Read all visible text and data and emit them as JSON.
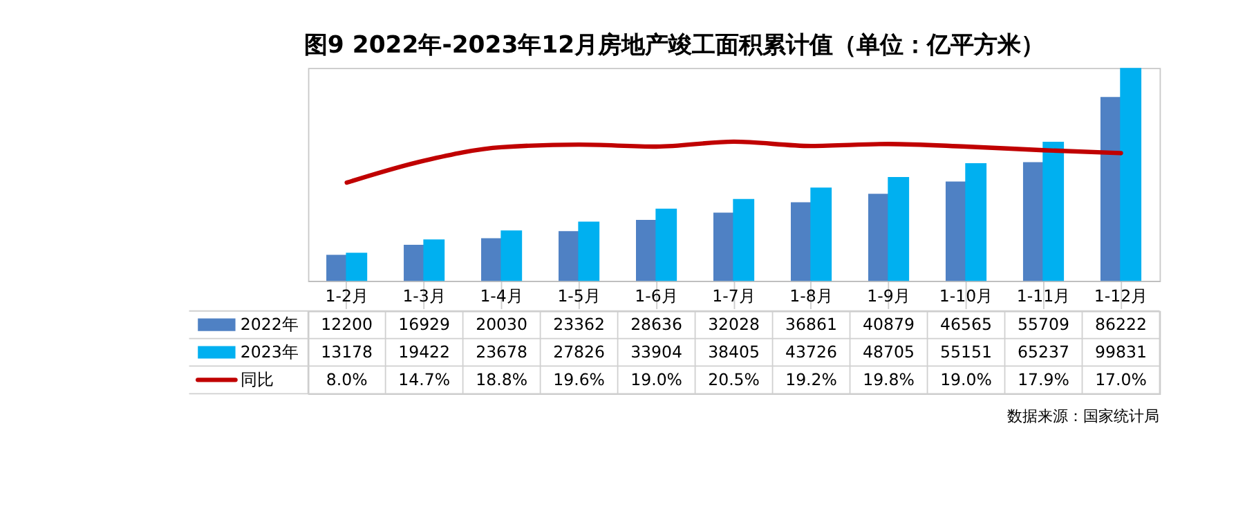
{
  "chart_data": {
    "type": "bar",
    "title": "图9 2022年-2023年12月房地产竣工面积累计值（单位：亿平方米）",
    "categories": [
      "1-2月",
      "1-3月",
      "1-4月",
      "1-5月",
      "1-6月",
      "1-7月",
      "1-8月",
      "1-9月",
      "1-10月",
      "1-11月",
      "1-12月"
    ],
    "series": [
      {
        "name": "2022年",
        "color": "#4f81c4",
        "values": [
          12200,
          16929,
          20030,
          23362,
          28636,
          32028,
          36861,
          40879,
          46565,
          55709,
          86222
        ]
      },
      {
        "name": "2023年",
        "color": "#00b0f0",
        "values": [
          13178,
          19422,
          23678,
          27826,
          33904,
          38405,
          43726,
          48705,
          55151,
          65237,
          99831
        ]
      },
      {
        "name": "同比",
        "type": "line",
        "axis": "y2",
        "color": "#c00000",
        "values": [
          8.0,
          14.7,
          18.8,
          19.6,
          19.0,
          20.5,
          19.2,
          19.8,
          19.0,
          17.9,
          17.0
        ],
        "value_labels": [
          "8.0%",
          "14.7%",
          "18.8%",
          "19.6%",
          "19.0%",
          "20.5%",
          "19.2%",
          "19.8%",
          "19.0%",
          "17.9%",
          "17.0%"
        ]
      }
    ],
    "data_labels": true,
    "legend": "bottom",
    "grid": false,
    "annotations": [
      "数据来源：国家统计局"
    ]
  }
}
